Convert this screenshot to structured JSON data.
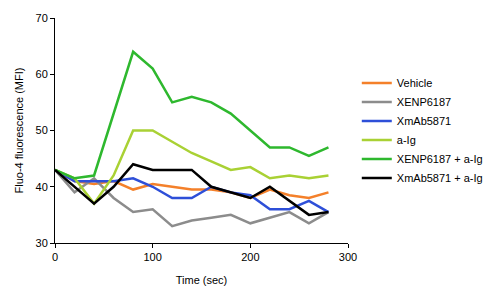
{
  "chart_data": {
    "type": "line",
    "x_label": "Time (sec)",
    "y_label": "Fluo-4 fluorescence (MFI)",
    "x": [
      0,
      20,
      40,
      60,
      80,
      100,
      120,
      140,
      160,
      180,
      200,
      220,
      240,
      260,
      280
    ],
    "series": [
      {
        "name": "Vehicle",
        "color": "#f4802a",
        "values": [
          43,
          41,
          40.5,
          41,
          39.5,
          40.5,
          40,
          39.5,
          39.5,
          39,
          38,
          39.5,
          38.5,
          38,
          39
        ]
      },
      {
        "name": "XENP6187",
        "color": "#8c8c8c",
        "values": [
          43,
          39,
          41.5,
          38,
          35.5,
          36,
          33,
          34,
          34.5,
          35,
          33.5,
          34.5,
          35.5,
          33.5,
          35.5
        ]
      },
      {
        "name": "XmAb5871",
        "color": "#2e4fd8",
        "values": [
          43,
          41,
          41,
          41,
          41.5,
          40,
          38,
          38,
          40,
          39,
          38.5,
          36,
          36,
          37.5,
          35.5
        ]
      },
      {
        "name": "a-Ig",
        "color": "#a9d134",
        "values": [
          43,
          41.5,
          37,
          42,
          50,
          50,
          48,
          46,
          44.5,
          43,
          43.5,
          41.5,
          42,
          41.5,
          42
        ]
      },
      {
        "name": "XENP6187 + a-Ig",
        "color": "#2eb82e",
        "values": [
          43,
          41.5,
          42,
          53,
          64,
          61,
          55,
          56,
          55,
          53,
          50,
          47,
          47,
          45.5,
          47
        ]
      },
      {
        "name": "XmAb5871 + a-Ig",
        "color": "#000000",
        "values": [
          43,
          40,
          37,
          40,
          44,
          43,
          43,
          43,
          40,
          39,
          38,
          40,
          37.5,
          35,
          35.5
        ]
      }
    ],
    "xlim": [
      0,
      300
    ],
    "xticks": [
      0,
      100,
      200,
      300
    ],
    "ylim": [
      30,
      70
    ],
    "yticks": [
      30,
      40,
      50,
      60,
      70
    ],
    "grid": false,
    "legend": "right"
  }
}
